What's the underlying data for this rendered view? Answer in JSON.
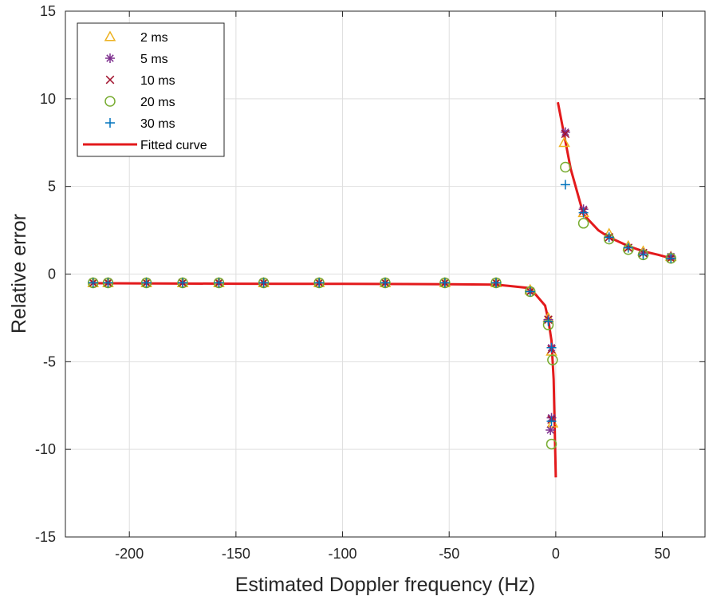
{
  "chart_data": {
    "type": "scatter",
    "title": "",
    "xlabel": "Estimated Doppler frequency (Hz)",
    "ylabel": "Relative error",
    "xlim": [
      -230,
      70
    ],
    "ylim": [
      -15,
      15
    ],
    "xticks": [
      -200,
      -150,
      -100,
      -50,
      0,
      50
    ],
    "xtick_labels": [
      "-200",
      "-150",
      "-100",
      "-50",
      "0",
      "50"
    ],
    "yticks": [
      -15,
      -10,
      -5,
      0,
      5,
      10,
      15
    ],
    "ytick_labels": [
      "-15",
      "-10",
      "-5",
      "0",
      "5",
      "10",
      "15"
    ],
    "grid": true,
    "legend_position": "top-left",
    "series": [
      {
        "name": "2 ms",
        "marker": "triangle",
        "color": "#EDB120",
        "points": [
          [
            -217,
            -0.5
          ],
          [
            -210,
            -0.5
          ],
          [
            -192,
            -0.5
          ],
          [
            -175,
            -0.5
          ],
          [
            -158,
            -0.5
          ],
          [
            -137,
            -0.5
          ],
          [
            -111,
            -0.5
          ],
          [
            -80,
            -0.5
          ],
          [
            -52,
            -0.5
          ],
          [
            -28,
            -0.5
          ],
          [
            -12,
            -0.9
          ],
          [
            -3.5,
            -2.5
          ],
          [
            -2,
            -4.4
          ],
          [
            -1.5,
            -8.5
          ],
          [
            4,
            7.5
          ],
          [
            13,
            3.5
          ],
          [
            25,
            2.3
          ],
          [
            34,
            1.6
          ],
          [
            41,
            1.3
          ],
          [
            54,
            1.0
          ]
        ]
      },
      {
        "name": "5 ms",
        "marker": "asterisk",
        "color": "#7E2F8E",
        "points": [
          [
            -217,
            -0.5
          ],
          [
            -210,
            -0.5
          ],
          [
            -192,
            -0.5
          ],
          [
            -175,
            -0.5
          ],
          [
            -158,
            -0.5
          ],
          [
            -137,
            -0.5
          ],
          [
            -111,
            -0.5
          ],
          [
            -80,
            -0.5
          ],
          [
            -52,
            -0.5
          ],
          [
            -28,
            -0.5
          ],
          [
            -12,
            -1.0
          ],
          [
            -3.5,
            -2.6
          ],
          [
            -2,
            -4.2
          ],
          [
            -2,
            -8.2
          ],
          [
            -2.5,
            -8.9
          ],
          [
            4.5,
            8.1
          ],
          [
            13,
            3.7
          ],
          [
            25,
            2.1
          ],
          [
            34,
            1.5
          ],
          [
            41,
            1.2
          ],
          [
            54,
            1.0
          ]
        ]
      },
      {
        "name": "10 ms",
        "marker": "x",
        "color": "#A2142F",
        "points": [
          [
            -217,
            -0.5
          ],
          [
            -210,
            -0.5
          ],
          [
            -192,
            -0.5
          ],
          [
            -175,
            -0.5
          ],
          [
            -158,
            -0.5
          ],
          [
            -137,
            -0.5
          ],
          [
            -111,
            -0.5
          ],
          [
            -80,
            -0.5
          ],
          [
            -52,
            -0.5
          ],
          [
            -28,
            -0.5
          ],
          [
            -12,
            -1.0
          ],
          [
            -3.5,
            -2.6
          ],
          [
            -2,
            -4.3
          ],
          [
            -2,
            -8.3
          ],
          [
            4.5,
            8.0
          ],
          [
            13,
            3.6
          ],
          [
            25,
            2.1
          ],
          [
            34,
            1.5
          ],
          [
            41,
            1.2
          ],
          [
            54,
            0.9
          ]
        ]
      },
      {
        "name": "20 ms",
        "marker": "circle",
        "color": "#77AC30",
        "points": [
          [
            -217,
            -0.5
          ],
          [
            -210,
            -0.5
          ],
          [
            -192,
            -0.5
          ],
          [
            -175,
            -0.5
          ],
          [
            -158,
            -0.5
          ],
          [
            -137,
            -0.5
          ],
          [
            -111,
            -0.5
          ],
          [
            -80,
            -0.5
          ],
          [
            -52,
            -0.5
          ],
          [
            -28,
            -0.5
          ],
          [
            -12,
            -1.0
          ],
          [
            -3.5,
            -2.9
          ],
          [
            -1.5,
            -4.9
          ],
          [
            -2,
            -9.7
          ],
          [
            4.5,
            6.1
          ],
          [
            13,
            2.9
          ],
          [
            25,
            2.0
          ],
          [
            34,
            1.4
          ],
          [
            41,
            1.1
          ],
          [
            54,
            0.9
          ]
        ]
      },
      {
        "name": "30 ms",
        "marker": "plus",
        "color": "#0072BD",
        "points": [
          [
            -217,
            -0.5
          ],
          [
            -210,
            -0.5
          ],
          [
            -192,
            -0.5
          ],
          [
            -175,
            -0.5
          ],
          [
            -158,
            -0.5
          ],
          [
            -137,
            -0.5
          ],
          [
            -111,
            -0.5
          ],
          [
            -80,
            -0.5
          ],
          [
            -52,
            -0.5
          ],
          [
            -28,
            -0.5
          ],
          [
            -12,
            -1.0
          ],
          [
            -3.5,
            -2.7
          ],
          [
            -2,
            -4.2
          ],
          [
            -2,
            -8.4
          ],
          [
            4.5,
            5.1
          ],
          [
            13,
            3.5
          ],
          [
            25,
            2.1
          ],
          [
            34,
            1.5
          ],
          [
            41,
            1.1
          ],
          [
            54,
            0.9
          ]
        ]
      },
      {
        "name": "Fitted curve",
        "marker": "line",
        "color": "#E31A1C",
        "points": [
          [
            -217,
            -0.52
          ],
          [
            -150,
            -0.55
          ],
          [
            -100,
            -0.56
          ],
          [
            -50,
            -0.58
          ],
          [
            -28,
            -0.6
          ],
          [
            -12,
            -0.8
          ],
          [
            -5,
            -1.8
          ],
          [
            -3.5,
            -2.6
          ],
          [
            -2,
            -3.8
          ],
          [
            -1,
            -6.0
          ],
          [
            0,
            -11.6
          ],
          [
            1,
            9.8
          ],
          [
            4,
            7.9
          ],
          [
            7,
            6.0
          ],
          [
            13,
            3.4
          ],
          [
            20,
            2.5
          ],
          [
            25,
            2.1
          ],
          [
            34,
            1.6
          ],
          [
            41,
            1.3
          ],
          [
            48,
            1.1
          ],
          [
            54,
            0.9
          ]
        ]
      }
    ]
  }
}
